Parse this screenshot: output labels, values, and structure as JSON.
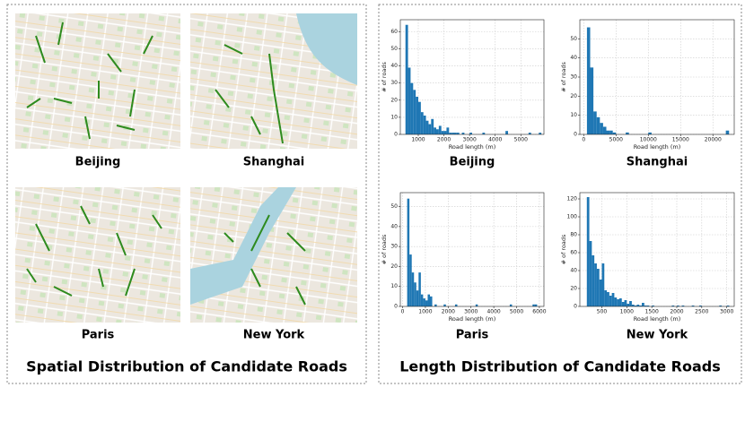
{
  "left_panel": {
    "title": "Spatial Distribution of Candidate Roads",
    "maps": [
      {
        "label": "Beijing"
      },
      {
        "label": "Shanghai"
      },
      {
        "label": "Paris"
      },
      {
        "label": "New York"
      }
    ]
  },
  "right_panel": {
    "title": "Length Distribution of Candidate Roads"
  },
  "chart_data": [
    {
      "type": "histogram",
      "title": "Beijing",
      "x_label": "Road length (m)",
      "y_label": "# of roads",
      "color": "#1f77b4",
      "grid": true,
      "xlim": [
        300,
        5900
      ],
      "ylim": [
        0,
        67
      ],
      "xticks": [
        1000,
        2000,
        3000,
        4000,
        5000
      ],
      "yticks": [
        0,
        10,
        20,
        30,
        40,
        50,
        60
      ],
      "bins": [
        500,
        600,
        700,
        800,
        900,
        1000,
        1100,
        1200,
        1300,
        1400,
        1500,
        1600,
        1700,
        1800,
        1900,
        2000,
        2100,
        2200,
        2300,
        2400,
        2500,
        2600,
        2700,
        2800,
        2900,
        3000,
        3100,
        3200,
        3300,
        3400,
        3500,
        3600,
        3700,
        3800,
        3900,
        4000,
        4100,
        4200,
        4300,
        4400,
        4500,
        4600,
        4700,
        4800,
        4900,
        5000,
        5100,
        5200,
        5300,
        5400,
        5500,
        5600,
        5700,
        5800
      ],
      "counts": [
        64,
        39,
        30,
        26,
        22,
        19,
        13,
        11,
        8,
        6,
        9,
        4,
        3,
        5,
        2,
        2,
        4,
        1,
        1,
        1,
        1,
        0,
        1,
        0,
        0,
        1,
        0,
        0,
        0,
        0,
        1,
        0,
        0,
        0,
        0,
        0,
        0,
        0,
        0,
        2,
        0,
        0,
        0,
        0,
        0,
        0,
        0,
        0,
        1,
        0,
        0,
        0,
        1
      ]
    },
    {
      "type": "histogram",
      "title": "Shanghai",
      "x_label": "Road length (m)",
      "y_label": "# of roads",
      "color": "#1f77b4",
      "grid": true,
      "xlim": [
        -600,
        23300
      ],
      "ylim": [
        0,
        60
      ],
      "xticks": [
        0,
        5000,
        10000,
        15000,
        20000
      ],
      "yticks": [
        0,
        10,
        20,
        30,
        40,
        50
      ],
      "bins": [
        500,
        1000,
        1500,
        2000,
        2500,
        3000,
        3500,
        4000,
        4500,
        5000,
        5500,
        6000,
        6500,
        7000,
        7500,
        8000,
        8500,
        9000,
        9500,
        10000,
        10500,
        11000,
        11500,
        12000,
        12500,
        13000,
        13500,
        14000,
        14500,
        15000,
        15500,
        16000,
        16500,
        17000,
        17500,
        18000,
        18500,
        19000,
        19500,
        20000,
        20500,
        21000,
        21500,
        22000,
        22500
      ],
      "counts": [
        56,
        35,
        12,
        9,
        6,
        4,
        2,
        2,
        1,
        0,
        0,
        0,
        1,
        0,
        0,
        0,
        0,
        0,
        0,
        1,
        0,
        0,
        0,
        0,
        0,
        0,
        0,
        0,
        0,
        0,
        0,
        0,
        0,
        0,
        0,
        0,
        0,
        0,
        0,
        0,
        0,
        0,
        0,
        2
      ]
    },
    {
      "type": "histogram",
      "title": "Paris",
      "x_label": "Road length (m)",
      "y_label": "# of roads",
      "color": "#1f77b4",
      "grid": true,
      "xlim": [
        -100,
        6200
      ],
      "ylim": [
        0,
        57
      ],
      "xticks": [
        0,
        1000,
        2000,
        3000,
        4000,
        5000,
        6000
      ],
      "yticks": [
        0,
        10,
        20,
        30,
        40,
        50
      ],
      "bins": [
        200,
        300,
        400,
        500,
        600,
        700,
        800,
        900,
        1000,
        1100,
        1200,
        1300,
        1400,
        1500,
        1600,
        1700,
        1800,
        1900,
        2000,
        2100,
        2200,
        2300,
        2400,
        2500,
        2600,
        2700,
        2800,
        2900,
        3000,
        3100,
        3200,
        3300,
        3400,
        3500,
        3600,
        3700,
        3800,
        3900,
        4000,
        4100,
        4200,
        4300,
        4400,
        4500,
        4600,
        4700,
        4800,
        4900,
        5000,
        5100,
        5200,
        5300,
        5400,
        5500,
        5600,
        5700,
        5800,
        5900
      ],
      "counts": [
        54,
        26,
        17,
        12,
        8,
        17,
        6,
        4,
        3,
        6,
        5,
        0,
        1,
        0,
        0,
        0,
        1,
        0,
        0,
        0,
        0,
        1,
        0,
        0,
        0,
        0,
        0,
        0,
        0,
        0,
        1,
        0,
        0,
        0,
        0,
        0,
        0,
        0,
        0,
        0,
        0,
        0,
        0,
        0,
        0,
        1,
        0,
        0,
        0,
        0,
        0,
        0,
        0,
        0,
        0,
        1,
        1
      ]
    },
    {
      "type": "histogram",
      "title": "New York",
      "x_label": "Road length (m)",
      "y_label": "# of roads",
      "color": "#1f77b4",
      "grid": true,
      "xlim": [
        60,
        3150
      ],
      "ylim": [
        0,
        127
      ],
      "xticks": [
        500,
        1000,
        1500,
        2000,
        2500,
        3000
      ],
      "yticks": [
        0,
        20,
        40,
        60,
        80,
        100,
        120
      ],
      "bins": [
        200,
        250,
        300,
        350,
        400,
        450,
        500,
        550,
        600,
        650,
        700,
        750,
        800,
        850,
        900,
        950,
        1000,
        1050,
        1100,
        1150,
        1200,
        1250,
        1300,
        1350,
        1400,
        1450,
        1500,
        1550,
        1600,
        1650,
        1700,
        1750,
        1800,
        1850,
        1900,
        1950,
        2000,
        2050,
        2100,
        2150,
        2200,
        2250,
        2300,
        2350,
        2400,
        2450,
        2500,
        2550,
        2600,
        2650,
        2700,
        2750,
        2800,
        2850,
        2900,
        2950,
        3000,
        3050
      ],
      "counts": [
        122,
        73,
        57,
        48,
        42,
        30,
        48,
        18,
        16,
        12,
        15,
        10,
        8,
        9,
        5,
        7,
        3,
        6,
        2,
        1,
        2,
        1,
        4,
        1,
        1,
        0,
        1,
        0,
        0,
        0,
        0,
        0,
        0,
        0,
        1,
        0,
        1,
        0,
        1,
        0,
        0,
        0,
        1,
        0,
        0,
        1,
        0,
        0,
        0,
        0,
        0,
        0,
        0,
        1,
        0,
        0,
        1
      ]
    }
  ]
}
